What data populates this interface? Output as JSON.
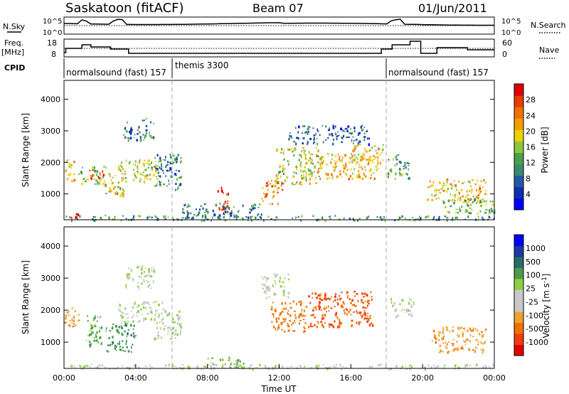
{
  "header": {
    "station": "Saskatoon (fitACF)",
    "beam": "Beam 07",
    "date": "01/Jun/2011"
  },
  "panel_labels": {
    "nsky": "N.Sky",
    "nsearch": "N.Search",
    "freq_line1": "Freq.",
    "freq_line2": "[MHz]",
    "nave": "Nave",
    "cpid": "CPID"
  },
  "noise_axis": {
    "top_left": "10^5",
    "bottom_left": "10^0",
    "top_right": "10^5",
    "bottom_right": "10^0"
  },
  "freq_axis": {
    "left_ticks": [
      "18",
      "8"
    ],
    "right_ticks": [
      "60",
      "0"
    ]
  },
  "cpid_segments": [
    {
      "label": "normalsound (fast) 157",
      "start": 0,
      "end": 6
    },
    {
      "label": "themis 3300",
      "start": 6,
      "end": 18
    },
    {
      "label": "normalsound (fast) 157",
      "start": 18,
      "end": 24
    }
  ],
  "colors": {
    "power_scale": [
      "#0000ff",
      "#0d2fb0",
      "#2357a5",
      "#3a8a6e",
      "#4aa04a",
      "#8cc63f",
      "#f0d000",
      "#f0a000",
      "#f07000",
      "#e83c00",
      "#e00000"
    ],
    "velocity_scale": [
      "#e00000",
      "#f03c10",
      "#f07000",
      "#f0a030",
      "#c8c8c8",
      "#c8c8c8",
      "#8cd040",
      "#4a9a50",
      "#2a6a6a",
      "#1a3aa0",
      "#0000ff"
    ],
    "ground": "#c0c0c0"
  },
  "chart_data": [
    {
      "type": "heatmap",
      "panel": "power",
      "xlabel": "Time UT",
      "ylabel": "Slant Range [km]",
      "xlim": [
        0,
        24
      ],
      "ylim": [
        180,
        4600
      ],
      "yticks": [
        "1000",
        "2000",
        "3000",
        "4000"
      ],
      "colorbar_label": "Power [dB]",
      "colorbar_ticks": [
        "4",
        "8",
        "12",
        "16",
        "20",
        "24",
        "28"
      ],
      "colorbar_range": [
        0,
        30
      ],
      "regions": [
        {
          "t0": 0.1,
          "t1": 0.9,
          "r0": 230,
          "r1": 400,
          "level": 28
        },
        {
          "t0": 0.0,
          "t1": 0.6,
          "r0": 1400,
          "r1": 2100,
          "level": 20
        },
        {
          "t0": 0.8,
          "t1": 2.3,
          "r0": 1300,
          "r1": 1900,
          "level": 14
        },
        {
          "t0": 1.4,
          "t1": 2.2,
          "r0": 1500,
          "r1": 1800,
          "level": 26
        },
        {
          "t0": 2.3,
          "t1": 3.4,
          "r0": 900,
          "r1": 1700,
          "level": 18
        },
        {
          "t0": 3.0,
          "t1": 5.2,
          "r0": 1400,
          "r1": 2100,
          "level": 16
        },
        {
          "t0": 3.3,
          "t1": 5.0,
          "r0": 2700,
          "r1": 3400,
          "level": 8
        },
        {
          "t0": 5.0,
          "t1": 6.5,
          "r0": 1100,
          "r1": 2300,
          "level": 8
        },
        {
          "t0": 8.5,
          "t1": 9.2,
          "r0": 450,
          "r1": 1300,
          "level": 28
        },
        {
          "t0": 6.5,
          "t1": 11.0,
          "r0": 250,
          "r1": 700,
          "level": 8
        },
        {
          "t0": 11.0,
          "t1": 12.2,
          "r0": 700,
          "r1": 1500,
          "level": 22
        },
        {
          "t0": 11.8,
          "t1": 14.2,
          "r0": 1300,
          "r1": 2500,
          "level": 16
        },
        {
          "t0": 14.0,
          "t1": 17.5,
          "r0": 1500,
          "r1": 2300,
          "level": 20
        },
        {
          "t0": 16.0,
          "t1": 17.8,
          "r0": 2000,
          "r1": 2600,
          "level": 18
        },
        {
          "t0": 12.5,
          "t1": 17.0,
          "r0": 2600,
          "r1": 3200,
          "level": 6
        },
        {
          "t0": 18.0,
          "t1": 19.2,
          "r0": 1500,
          "r1": 2300,
          "level": 12
        },
        {
          "t0": 20.2,
          "t1": 23.5,
          "r0": 800,
          "r1": 1500,
          "level": 20
        },
        {
          "t0": 21.0,
          "t1": 24.0,
          "r0": 400,
          "r1": 900,
          "level": 14
        },
        {
          "t0": 0.0,
          "t1": 24.0,
          "r0": 180,
          "r1": 330,
          "level": 10
        }
      ]
    },
    {
      "type": "heatmap",
      "panel": "velocity",
      "xlabel": "Time UT",
      "ylabel": "Slant Range [km]",
      "xlim": [
        0,
        24
      ],
      "ylim": [
        180,
        4600
      ],
      "xticks": [
        "00:00",
        "04:00",
        "08:00",
        "12:00",
        "16:00",
        "20:00",
        "00:00"
      ],
      "yticks": [
        "1000",
        "2000",
        "3000",
        "4000"
      ],
      "colorbar_label": "Velocity [m s^-1]",
      "colorbar_ticks": [
        "-1000",
        "-500",
        "-100",
        "-25",
        "25",
        "100",
        "500",
        "1000"
      ],
      "regions": [
        {
          "t0": 0.0,
          "t1": 0.8,
          "r0": 1400,
          "r1": 2100,
          "velocity": -200
        },
        {
          "t0": 1.2,
          "t1": 2.2,
          "r0": 900,
          "r1": 1900,
          "velocity": 150
        },
        {
          "t0": 2.3,
          "t1": 4.0,
          "r0": 700,
          "r1": 1600,
          "velocity": 200
        },
        {
          "t0": 3.0,
          "t1": 5.5,
          "r0": 1600,
          "r1": 2300,
          "velocity": 0
        },
        {
          "t0": 3.3,
          "t1": 5.0,
          "r0": 2700,
          "r1": 3400,
          "velocity": 0
        },
        {
          "t0": 5.0,
          "t1": 6.5,
          "r0": 1100,
          "r1": 2000,
          "velocity": 0
        },
        {
          "t0": 8.0,
          "t1": 10.0,
          "r0": 180,
          "r1": 550,
          "velocity": 100
        },
        {
          "t0": 11.5,
          "t1": 13.5,
          "r0": 1300,
          "r1": 2300,
          "velocity": -400
        },
        {
          "t0": 13.5,
          "t1": 17.2,
          "r0": 1500,
          "r1": 2600,
          "velocity": -500
        },
        {
          "t0": 11.0,
          "t1": 12.5,
          "r0": 2400,
          "r1": 3200,
          "velocity": 0
        },
        {
          "t0": 18.2,
          "t1": 19.5,
          "r0": 1800,
          "r1": 2400,
          "velocity": 0
        },
        {
          "t0": 20.5,
          "t1": 23.5,
          "r0": 700,
          "r1": 1500,
          "velocity": -200
        },
        {
          "t0": 0.0,
          "t1": 24.0,
          "r0": 180,
          "r1": 330,
          "velocity": 0
        }
      ]
    }
  ]
}
